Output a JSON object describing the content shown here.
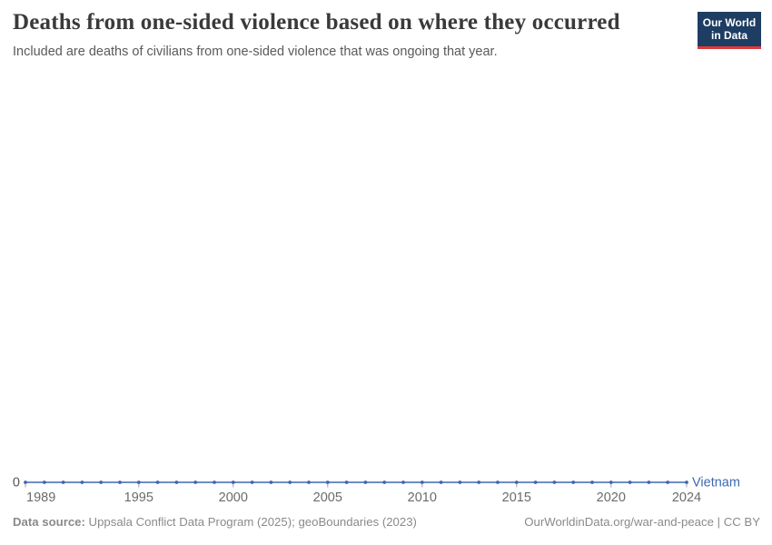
{
  "header": {
    "title": "Deaths from one-sided violence based on where they occurred",
    "subtitle": "Included are deaths of civilians from one-sided violence that was ongoing that year."
  },
  "logo": {
    "line1": "Our World",
    "line2": "in Data"
  },
  "chart_data": {
    "type": "line",
    "title": "Deaths from one-sided violence based on where they occurred",
    "x": [
      1989,
      1990,
      1991,
      1992,
      1993,
      1994,
      1995,
      1996,
      1997,
      1998,
      1999,
      2000,
      2001,
      2002,
      2003,
      2004,
      2005,
      2006,
      2007,
      2008,
      2009,
      2010,
      2011,
      2012,
      2013,
      2014,
      2015,
      2016,
      2017,
      2018,
      2019,
      2020,
      2021,
      2022,
      2023,
      2024
    ],
    "series": [
      {
        "name": "Vietnam",
        "color": "#3d68b0",
        "values": [
          0,
          0,
          0,
          0,
          0,
          0,
          0,
          0,
          0,
          0,
          0,
          0,
          0,
          0,
          0,
          0,
          0,
          0,
          0,
          0,
          0,
          0,
          0,
          0,
          0,
          0,
          0,
          0,
          0,
          0,
          0,
          0,
          0,
          0,
          0,
          0
        ]
      }
    ],
    "x_tick_labels": [
      1989,
      1995,
      2000,
      2005,
      2010,
      2015,
      2020,
      2024
    ],
    "xlim": [
      1989,
      2024
    ],
    "y_axis": {
      "tick_label": "0",
      "min": 0
    },
    "grid": false,
    "legend": "inline-end-label",
    "marker": "point"
  },
  "footer": {
    "source_label": "Data source:",
    "source_text": " Uppsala Conflict Data Program (2025); geoBoundaries (2023)",
    "credit": "OurWorldinData.org/war-and-peace | CC BY"
  },
  "colors": {
    "series_line": "#3d68b0",
    "logo_bg": "#1d3d63",
    "logo_bar": "#e0393b",
    "title_text": "#3a3a3a",
    "subtitle_text": "#5a5a5a",
    "tick_label": "#6b6b6b",
    "axis_tick": "#a1a1a1",
    "footer_text": "#8a8a8a"
  }
}
